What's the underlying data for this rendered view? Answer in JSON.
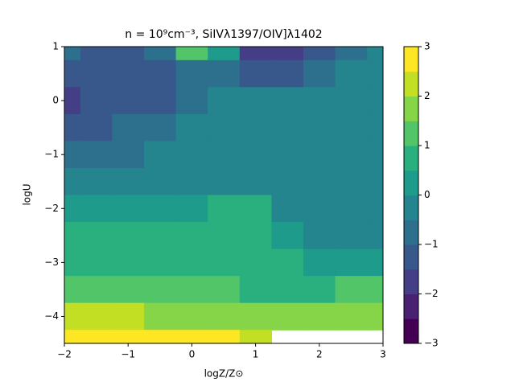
{
  "chart_data": {
    "type": "contour",
    "title": "n = 10⁹cm⁻³, SiIVλ1397/OIV]λ1402",
    "xlabel": "logZ/Z⊙",
    "ylabel": "logU",
    "xlim": [
      -2,
      3
    ],
    "ylim": [
      -4.5,
      1
    ],
    "xticks": [
      {
        "value": -2,
        "label": "−2"
      },
      {
        "value": -1,
        "label": "−1"
      },
      0,
      1,
      2,
      3
    ],
    "yticks": [
      {
        "value": -4,
        "label": "−4"
      },
      {
        "value": -3,
        "label": "−3"
      },
      {
        "value": -2,
        "label": "−2"
      },
      {
        "value": -1,
        "label": "−1"
      },
      0,
      1
    ],
    "levels": [
      -3,
      -2.5,
      -2,
      -1.5,
      -1,
      -0.5,
      0,
      0.5,
      1,
      1.5,
      2,
      2.5,
      3
    ],
    "colors": [
      "#440154",
      "#482173",
      "#433e85",
      "#38588c",
      "#2d708e",
      "#25858e",
      "#1e9b8a",
      "#2ab07f",
      "#52c569",
      "#86d549",
      "#c2df23",
      "#fde725"
    ],
    "cbticks": [
      {
        "value": -3,
        "label": "−3"
      },
      {
        "value": -2,
        "label": "−2"
      },
      {
        "value": -1,
        "label": "−1"
      },
      0,
      1,
      2,
      3
    ],
    "x": [
      -2,
      -1.5,
      -1,
      -0.5,
      0,
      0.5,
      1,
      1.5,
      2,
      2.5,
      3
    ],
    "y": [
      1,
      0.5,
      0,
      -0.5,
      -1,
      -1.5,
      -2,
      -2.5,
      -3,
      -3.5,
      -4,
      -4.5
    ],
    "z": [
      [
        -0.8,
        -1.2,
        -1.2,
        -0.5,
        1.5,
        0.3,
        -1.8,
        -1.8,
        -1.3,
        -0.8,
        -0.2
      ],
      [
        -1.3,
        -1.3,
        -1.2,
        -1.2,
        -0.8,
        -0.6,
        -1.3,
        -1.3,
        -0.8,
        -0.3,
        -0.2
      ],
      [
        -1.6,
        -1.3,
        -1.2,
        -1.1,
        -0.8,
        -0.3,
        -0.3,
        -0.2,
        -0.2,
        -0.2,
        -0.2
      ],
      [
        -1.2,
        -1.1,
        -0.9,
        -0.7,
        -0.3,
        -0.2,
        -0.2,
        -0.2,
        -0.2,
        -0.2,
        -0.2
      ],
      [
        -0.8,
        -0.7,
        -0.6,
        -0.4,
        -0.2,
        -0.2,
        -0.2,
        -0.2,
        -0.2,
        -0.2,
        -0.2
      ],
      [
        -0.4,
        -0.4,
        -0.3,
        -0.1,
        -0.1,
        -0.2,
        -0.2,
        -0.2,
        -0.2,
        -0.2,
        -0.2
      ],
      [
        0.2,
        0.2,
        0.2,
        0.2,
        0.3,
        0.6,
        0.6,
        -0.1,
        -0.2,
        -0.2,
        -0.2
      ],
      [
        0.6,
        0.6,
        0.6,
        0.6,
        0.7,
        0.8,
        0.8,
        0.4,
        -0.2,
        -0.2,
        -0.2
      ],
      [
        0.8,
        0.8,
        0.8,
        0.8,
        0.8,
        0.8,
        0.8,
        0.7,
        0.3,
        0.2,
        0.1
      ],
      [
        1.2,
        1.2,
        1.2,
        1.2,
        1.1,
        1.1,
        1.0,
        1.0,
        1.0,
        1.2,
        1.4
      ],
      [
        2.1,
        2.1,
        2.1,
        2.0,
        2.0,
        1.9,
        1.8,
        1.7,
        1.6,
        1.6,
        1.7
      ],
      [
        2.8,
        2.8,
        2.8,
        2.8,
        2.7,
        2.6,
        2.5,
        3.3,
        3.3,
        3.3,
        3.3
      ]
    ]
  }
}
